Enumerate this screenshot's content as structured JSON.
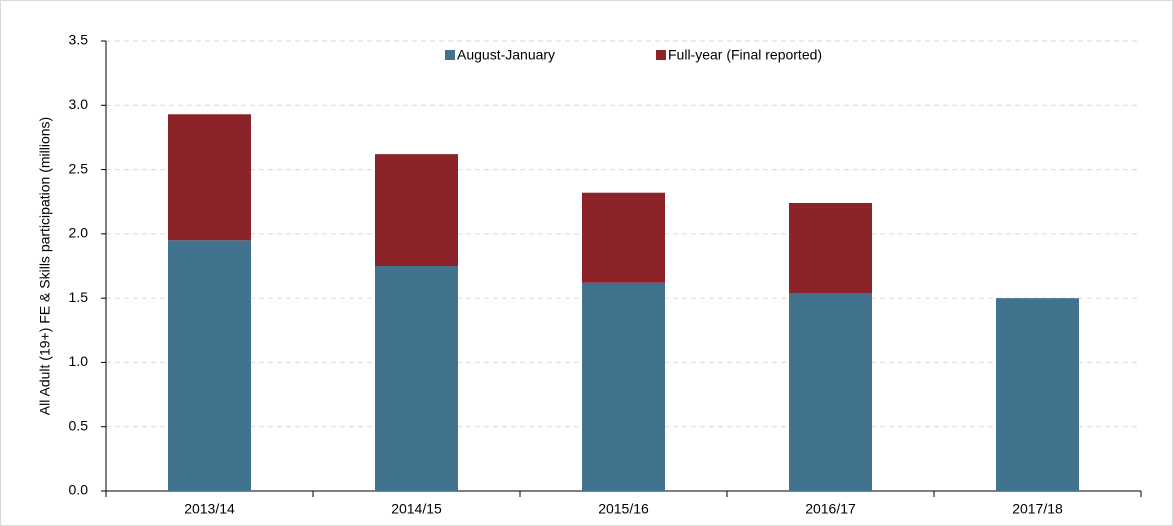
{
  "chart_data": {
    "type": "stacked_bar",
    "y_label": "All Adult (19+) FE & Skills participation (millions)",
    "categories": [
      "2013/14",
      "2014/15",
      "2015/16",
      "2016/17",
      "2017/18"
    ],
    "series": [
      {
        "name": "August-January",
        "color": "#41738f",
        "values": [
          1.95,
          1.75,
          1.62,
          1.54,
          1.5
        ]
      },
      {
        "name": "Full-year (Final reported)",
        "color": "#8b2329",
        "values": [
          0.98,
          0.87,
          0.7,
          0.7,
          null
        ]
      }
    ],
    "ylim": [
      0,
      3.5
    ],
    "yticks": [
      {
        "value": 0,
        "label": "0.0"
      },
      {
        "value": 0.5,
        "label": "0.5"
      },
      {
        "value": 1,
        "label": "1.0"
      },
      {
        "value": 1.5,
        "label": "1.5"
      },
      {
        "value": 2,
        "label": "2.0"
      },
      {
        "value": 2.5,
        "label": "2.5"
      },
      {
        "value": 3,
        "label": "3.0"
      },
      {
        "value": 3.5,
        "label": "3.5"
      }
    ],
    "grid": true,
    "legend": "top"
  }
}
